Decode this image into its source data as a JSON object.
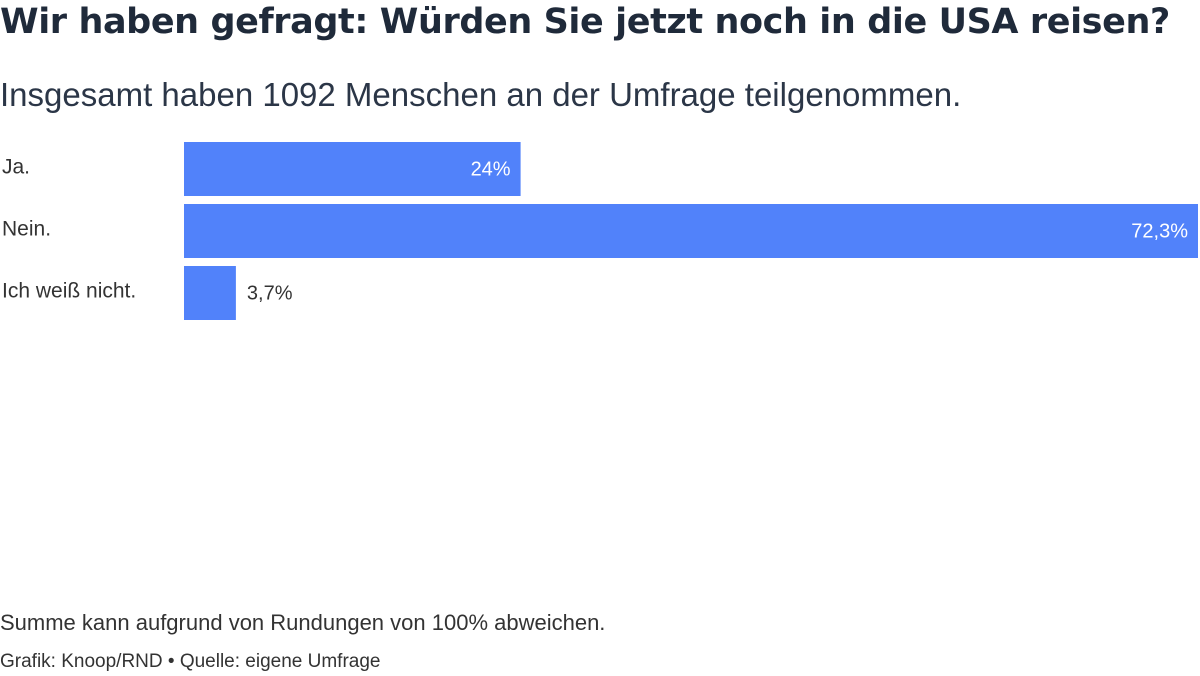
{
  "header": {
    "title": "Wir haben gefragt: Würden Sie jetzt noch in die USA reisen?",
    "subtitle": "Insgesamt haben 1092 Menschen an der Umfrage teilgenommen."
  },
  "chart_data": {
    "type": "bar",
    "orientation": "horizontal",
    "categories": [
      "Ja.",
      "Nein.",
      "Ich weiß nicht."
    ],
    "values": [
      24,
      72.3,
      3.7
    ],
    "value_labels": [
      "24%",
      "72,3%",
      "3,7%"
    ],
    "unit": "%",
    "xlim": [
      0,
      72.3
    ],
    "grid": false,
    "legend": "none",
    "bar_color": "#5182fa"
  },
  "footer": {
    "note": "Summe kann aufgrund von Rundungen von 100% abweichen.",
    "credit": "Grafik: Knoop/RND • Quelle: eigene Umfrage"
  }
}
